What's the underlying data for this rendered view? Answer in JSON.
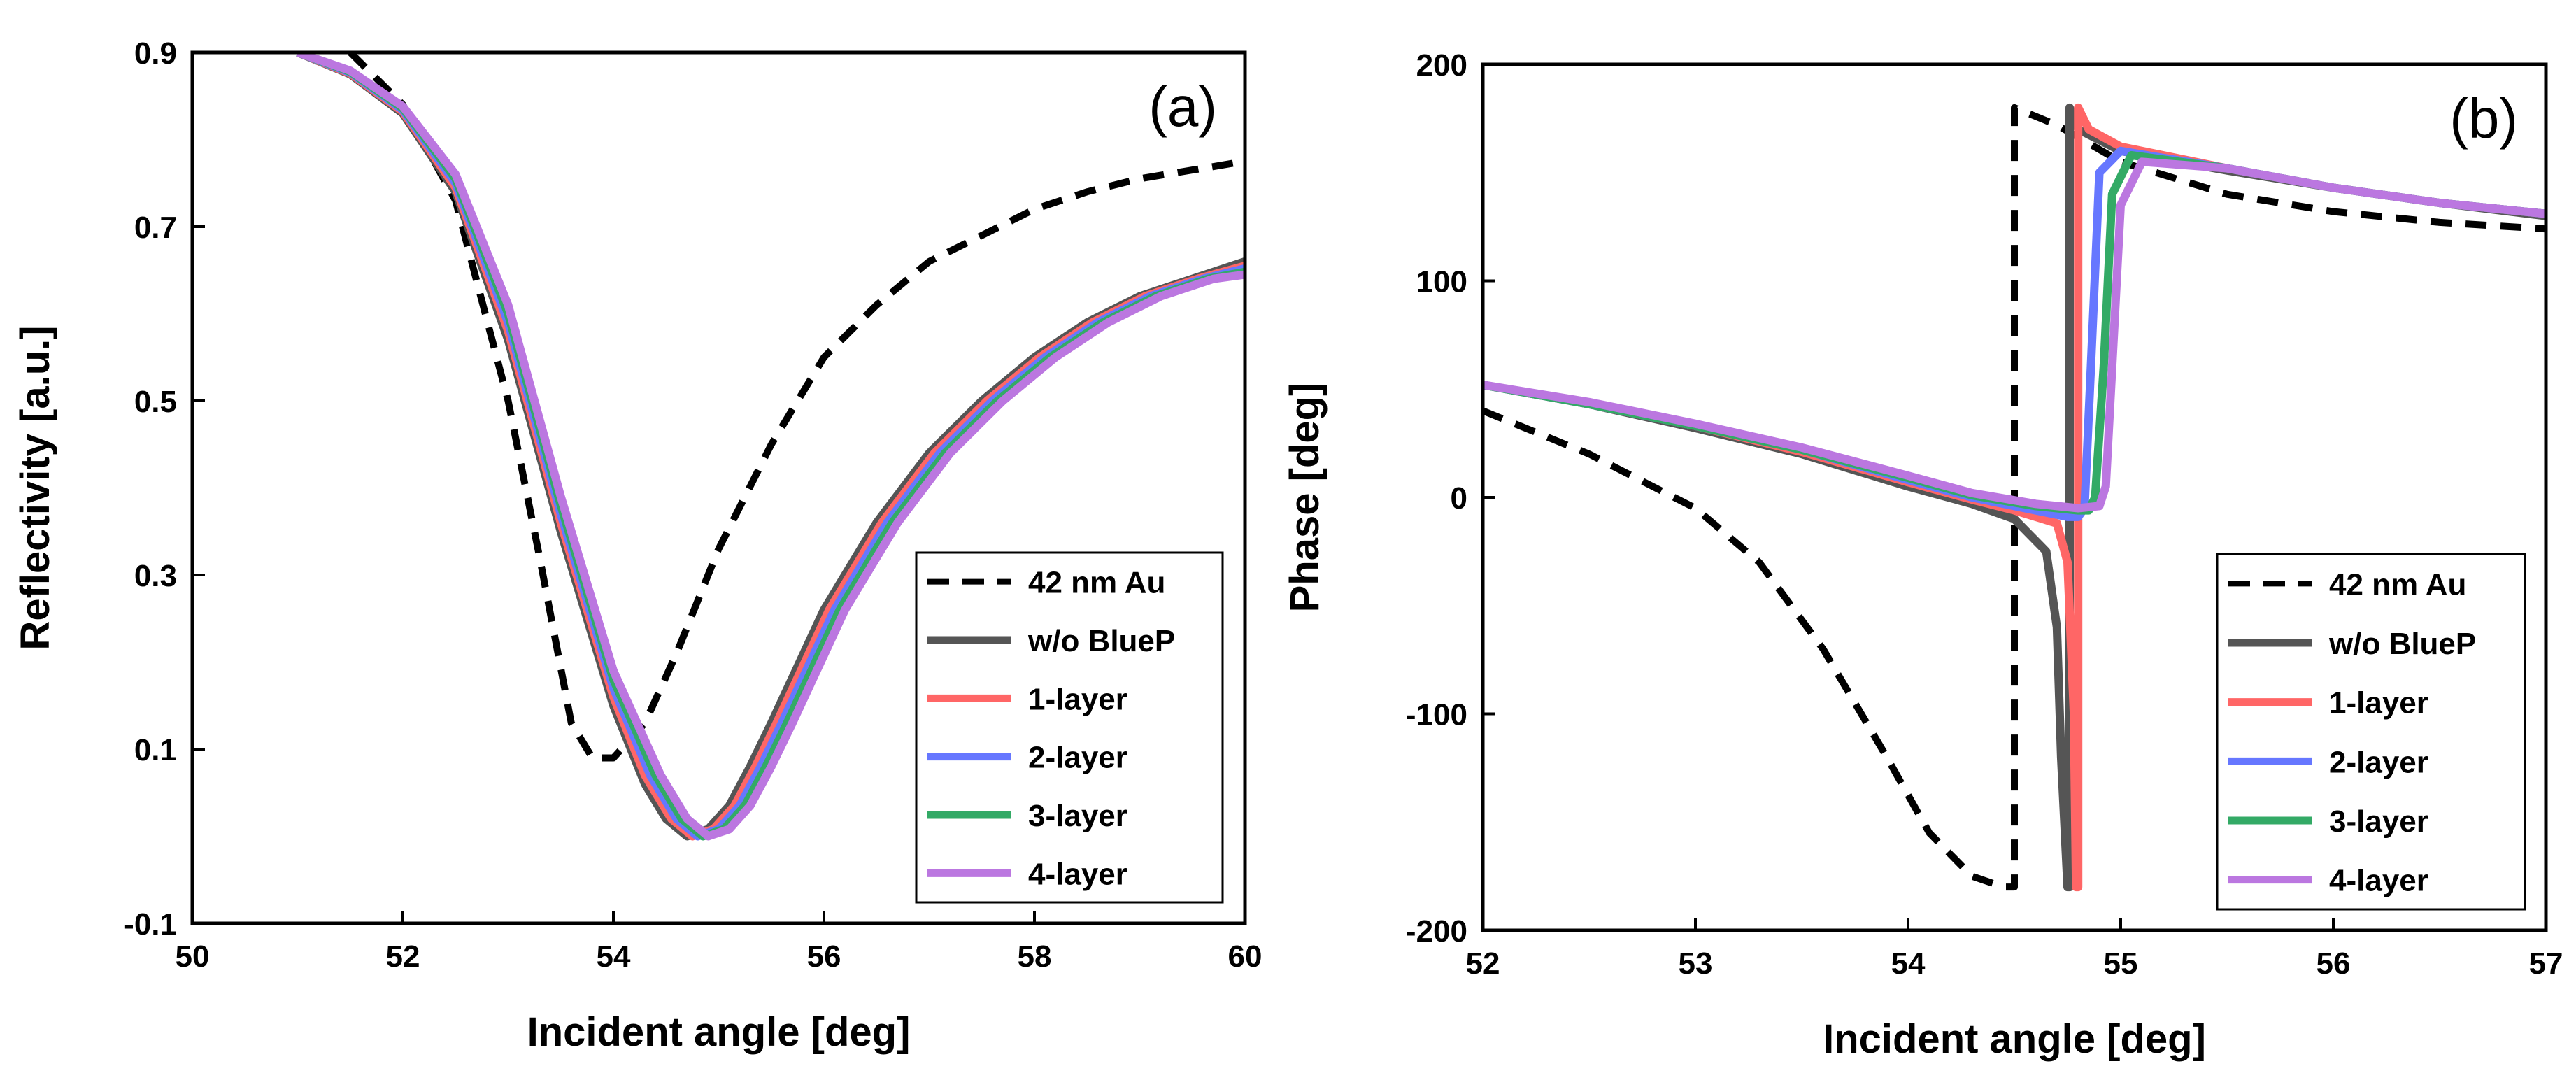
{
  "figure": {
    "background": "#ffffff"
  },
  "colors": {
    "42 nm Au": "#000000",
    "w/o BlueP": "#555555",
    "1-layer": "#ff6666",
    "2-layer": "#6677ff",
    "3-layer": "#33aa66",
    "4-layer": "#bb77e0"
  },
  "chart_data": [
    {
      "type": "line",
      "panel_label": "(a)",
      "xlabel": "Incident angle [deg]",
      "ylabel": "Reflectivity [a.u.]",
      "xlim": [
        50,
        60
      ],
      "ylim": [
        -0.1,
        0.9
      ],
      "xticks": [
        "50",
        "52",
        "54",
        "56",
        "58",
        "60"
      ],
      "yticks": [
        "-0.1",
        "0.1",
        "0.3",
        "0.5",
        "0.7",
        "0.9"
      ],
      "grid": false,
      "legend_position": "bottom-right",
      "series": [
        {
          "name": "42 nm Au",
          "style": "dashed",
          "x": [
            51.5,
            52.0,
            52.5,
            53.0,
            53.3,
            53.6,
            53.8,
            54.0,
            54.3,
            54.6,
            55.0,
            55.5,
            56.0,
            56.5,
            57.0,
            57.5,
            58.0,
            58.5,
            59.0,
            59.5,
            60.0
          ],
          "y": [
            0.9,
            0.84,
            0.73,
            0.5,
            0.32,
            0.13,
            0.09,
            0.09,
            0.13,
            0.21,
            0.33,
            0.45,
            0.55,
            0.61,
            0.66,
            0.69,
            0.72,
            0.74,
            0.755,
            0.765,
            0.775
          ]
        },
        {
          "name": "w/o BlueP",
          "style": "solid",
          "x": [
            51.0,
            51.5,
            52.0,
            52.5,
            53.0,
            53.5,
            54.0,
            54.3,
            54.5,
            54.7,
            54.9,
            55.1,
            55.3,
            55.5,
            56.0,
            56.5,
            57.0,
            57.5,
            58.0,
            58.5,
            59.0,
            59.5,
            60.0
          ],
          "y": [
            0.9,
            0.875,
            0.83,
            0.74,
            0.57,
            0.35,
            0.15,
            0.06,
            0.02,
            0.0,
            0.008,
            0.035,
            0.08,
            0.13,
            0.26,
            0.36,
            0.44,
            0.5,
            0.55,
            0.59,
            0.62,
            0.64,
            0.66
          ]
        },
        {
          "name": "1-layer",
          "style": "solid",
          "x": [
            51.0,
            51.5,
            52.0,
            52.5,
            53.0,
            53.5,
            54.0,
            54.3,
            54.55,
            54.75,
            54.95,
            55.15,
            55.35,
            55.55,
            56.05,
            56.55,
            57.05,
            57.55,
            58.05,
            58.55,
            59.05,
            59.55,
            60.0
          ],
          "y": [
            0.9,
            0.876,
            0.832,
            0.745,
            0.58,
            0.36,
            0.16,
            0.07,
            0.02,
            0.0,
            0.008,
            0.035,
            0.08,
            0.13,
            0.26,
            0.36,
            0.44,
            0.5,
            0.55,
            0.59,
            0.62,
            0.64,
            0.655
          ]
        },
        {
          "name": "2-layer",
          "style": "solid",
          "x": [
            51.0,
            51.5,
            52.0,
            52.5,
            53.0,
            53.5,
            54.0,
            54.35,
            54.6,
            54.8,
            55.0,
            55.2,
            55.4,
            55.6,
            56.1,
            56.6,
            57.1,
            57.6,
            58.1,
            58.6,
            59.1,
            59.6,
            60.0
          ],
          "y": [
            0.9,
            0.877,
            0.834,
            0.75,
            0.59,
            0.37,
            0.17,
            0.07,
            0.02,
            0.0,
            0.008,
            0.035,
            0.08,
            0.13,
            0.26,
            0.36,
            0.44,
            0.5,
            0.55,
            0.59,
            0.62,
            0.64,
            0.652
          ]
        },
        {
          "name": "3-layer",
          "style": "solid",
          "x": [
            51.0,
            51.5,
            52.0,
            52.5,
            53.0,
            53.5,
            54.0,
            54.4,
            54.65,
            54.85,
            55.05,
            55.25,
            55.45,
            55.65,
            56.15,
            56.65,
            57.15,
            57.65,
            58.15,
            58.65,
            59.15,
            59.65,
            60.0
          ],
          "y": [
            0.9,
            0.878,
            0.836,
            0.755,
            0.6,
            0.38,
            0.18,
            0.07,
            0.02,
            0.0,
            0.008,
            0.035,
            0.08,
            0.13,
            0.26,
            0.36,
            0.44,
            0.5,
            0.55,
            0.59,
            0.62,
            0.64,
            0.648
          ]
        },
        {
          "name": "4-layer",
          "style": "solid",
          "x": [
            51.0,
            51.5,
            52.0,
            52.5,
            53.0,
            53.5,
            54.0,
            54.45,
            54.7,
            54.9,
            55.1,
            55.3,
            55.5,
            55.7,
            56.2,
            56.7,
            57.2,
            57.7,
            58.2,
            58.7,
            59.2,
            59.7,
            60.0
          ],
          "y": [
            0.9,
            0.879,
            0.838,
            0.76,
            0.61,
            0.39,
            0.19,
            0.07,
            0.02,
            0.0,
            0.008,
            0.035,
            0.08,
            0.13,
            0.26,
            0.36,
            0.44,
            0.5,
            0.55,
            0.59,
            0.62,
            0.64,
            0.645
          ]
        }
      ]
    },
    {
      "type": "line",
      "panel_label": "(b)",
      "xlabel": "Incident angle [deg]",
      "ylabel": "Phase [deg]",
      "xlim": [
        52,
        57
      ],
      "ylim": [
        -200,
        200
      ],
      "xticks": [
        "52",
        "53",
        "54",
        "55",
        "56",
        "57"
      ],
      "yticks": [
        "-200",
        "-100",
        "0",
        "100",
        "200"
      ],
      "grid": false,
      "legend_position": "bottom-right",
      "series": [
        {
          "name": "42 nm Au",
          "style": "dashed",
          "x": [
            52.0,
            52.5,
            53.0,
            53.3,
            53.6,
            53.9,
            54.1,
            54.3,
            54.45,
            54.5,
            54.5,
            54.7,
            55.0,
            55.5,
            56.0,
            56.5,
            57.0
          ],
          "y": [
            40,
            20,
            -5,
            -30,
            -70,
            -120,
            -155,
            -175,
            -180,
            -180,
            180,
            172,
            155,
            140,
            132,
            127,
            124
          ]
        },
        {
          "name": "w/o BlueP",
          "style": "solid",
          "x": [
            52.0,
            52.5,
            53.0,
            53.5,
            54.0,
            54.3,
            54.5,
            54.65,
            54.7,
            54.72,
            54.75,
            54.76,
            54.76,
            54.8,
            55.0,
            55.5,
            56.0,
            56.5,
            57.0
          ],
          "y": [
            52,
            43,
            32,
            20,
            5,
            -3,
            -10,
            -25,
            -60,
            -120,
            -180,
            -180,
            180,
            170,
            160,
            151,
            143,
            136,
            130
          ]
        },
        {
          "name": "1-layer",
          "style": "solid",
          "x": [
            52.0,
            52.5,
            53.0,
            53.5,
            54.0,
            54.3,
            54.5,
            54.7,
            54.75,
            54.78,
            54.79,
            54.8,
            54.8,
            54.85,
            55.0,
            55.5,
            56.0,
            56.5,
            57.0
          ],
          "y": [
            52,
            43,
            33,
            21,
            7,
            -1,
            -6,
            -12,
            -30,
            -100,
            -180,
            -180,
            180,
            170,
            162,
            152,
            143,
            136,
            131
          ]
        },
        {
          "name": "2-layer",
          "style": "solid",
          "x": [
            52.0,
            52.5,
            53.0,
            53.5,
            54.0,
            54.3,
            54.6,
            54.75,
            54.8,
            54.83,
            54.86,
            54.9,
            55.0,
            55.5,
            56.0,
            56.5,
            57.0
          ],
          "y": [
            52,
            43,
            33,
            22,
            8,
            0,
            -6,
            -9,
            -9,
            -5,
            60,
            150,
            160,
            152,
            143,
            136,
            131
          ]
        },
        {
          "name": "3-layer",
          "style": "solid",
          "x": [
            52.0,
            52.5,
            53.0,
            53.5,
            54.0,
            54.3,
            54.6,
            54.8,
            54.85,
            54.88,
            54.92,
            54.96,
            55.05,
            55.5,
            56.0,
            56.5,
            57.0
          ],
          "y": [
            52,
            43,
            33,
            22,
            9,
            1,
            -4,
            -6,
            -6,
            0,
            60,
            140,
            158,
            152,
            143,
            136,
            131
          ]
        },
        {
          "name": "4-layer",
          "style": "solid",
          "x": [
            52.0,
            52.5,
            53.0,
            53.5,
            54.0,
            54.3,
            54.6,
            54.8,
            54.9,
            54.93,
            54.96,
            55.0,
            55.1,
            55.5,
            56.0,
            56.5,
            57.0
          ],
          "y": [
            52,
            44,
            34,
            23,
            10,
            2,
            -3,
            -5,
            -4,
            5,
            60,
            135,
            155,
            152,
            143,
            136,
            131
          ]
        }
      ]
    }
  ]
}
